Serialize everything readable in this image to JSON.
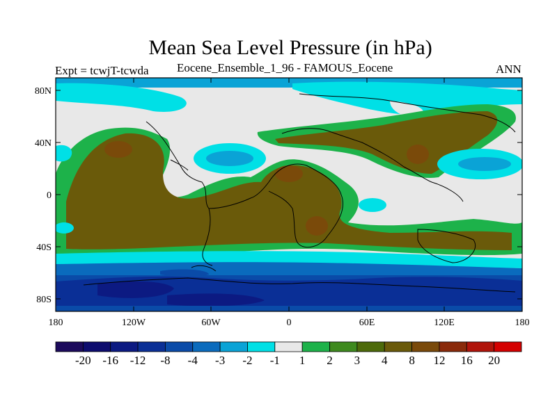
{
  "title": "Mean Sea Level Pressure (in hPa)",
  "left_label": "Expt = tcwjT-tcwda",
  "center_label": "Eocene_Ensemble_1_96 - FAMOUS_Eocene",
  "right_label": "ANN",
  "lat_labels": [
    "80N",
    "40N",
    "0",
    "40S",
    "80S"
  ],
  "lon_labels": [
    "180",
    "120W",
    "60W",
    "0",
    "60E",
    "120E",
    "180"
  ],
  "colorbar": {
    "colors": [
      "#1c0a5c",
      "#0d0c6e",
      "#0c1a82",
      "#0a2f96",
      "#0a4ba8",
      "#0a6bbd",
      "#0aa3d6",
      "#00e0e6",
      "#e8e8e8",
      "#1db24a",
      "#3e8a1e",
      "#4d6a0a",
      "#6a5a0a",
      "#7a4a0a",
      "#8a2a0a",
      "#b0140a",
      "#d40000"
    ],
    "labels": [
      "-20",
      "-16",
      "-12",
      "-8",
      "-4",
      "-3",
      "-2",
      "-1",
      "1",
      "2",
      "3",
      "4",
      "8",
      "12",
      "16",
      "20"
    ]
  }
}
